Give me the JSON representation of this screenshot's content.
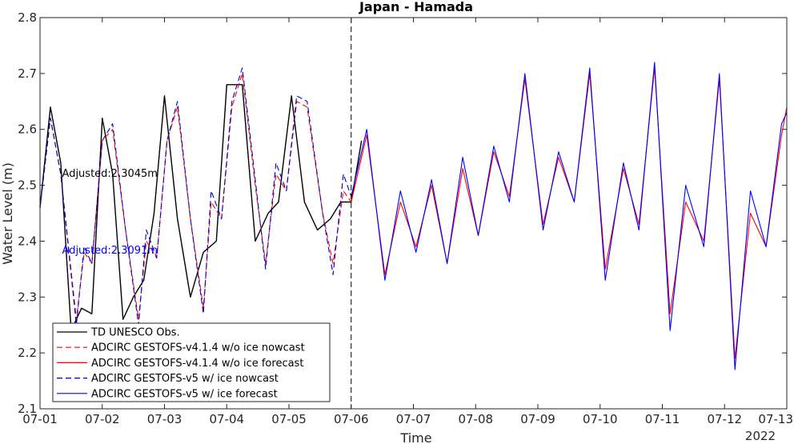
{
  "chart_data": {
    "type": "line",
    "title": "Japan - Hamada",
    "xlabel": "Time",
    "ylabel": "Water Level (m)",
    "year_label": "2022",
    "x_ticks": [
      "07-01",
      "07-02",
      "07-03",
      "07-04",
      "07-05",
      "07-06",
      "07-07",
      "07-08",
      "07-09",
      "07-10",
      "07-11",
      "07-12",
      "07-13"
    ],
    "xlim": [
      "2022-07-01",
      "2022-07-13"
    ],
    "ylim": [
      2.1,
      2.8
    ],
    "y_ticks": [
      2.1,
      2.2,
      2.3,
      2.4,
      2.5,
      2.6,
      2.7,
      2.8
    ],
    "nowcast_end": "2022-07-06",
    "annotations": [
      {
        "text": "Adjusted:2.3045m",
        "color": "#000000",
        "x": "2022-07-01 08:30",
        "y": 2.515
      },
      {
        "text": "Adjusted:2.3091m",
        "color": "#0000ff",
        "x": "2022-07-01 08:30",
        "y": 2.378
      }
    ],
    "legend_position": "bottom-left",
    "series": [
      {
        "name": "TD UNESCO Obs.",
        "color": "#000000",
        "dash": "solid",
        "x": [
          "2022-07-01 00:00",
          "2022-07-01 04:00",
          "2022-07-01 08:00",
          "2022-07-01 12:00",
          "2022-07-01 16:00",
          "2022-07-01 20:00",
          "2022-07-02 00:00",
          "2022-07-02 04:00",
          "2022-07-02 08:00",
          "2022-07-02 12:00",
          "2022-07-02 16:00",
          "2022-07-02 20:00",
          "2022-07-03 00:00",
          "2022-07-03 05:00",
          "2022-07-03 10:00",
          "2022-07-03 15:00",
          "2022-07-03 20:00",
          "2022-07-04 00:00",
          "2022-07-04 06:00",
          "2022-07-04 11:00",
          "2022-07-04 16:00",
          "2022-07-04 20:00",
          "2022-07-05 01:00",
          "2022-07-05 06:00",
          "2022-07-05 11:00",
          "2022-07-05 16:00",
          "2022-07-05 20:00",
          "2022-07-06 00:00",
          "2022-07-06 04:00"
        ],
        "y": [
          2.46,
          2.64,
          2.54,
          2.24,
          2.28,
          2.27,
          2.62,
          2.52,
          2.26,
          2.3,
          2.33,
          2.45,
          2.66,
          2.44,
          2.3,
          2.38,
          2.4,
          2.68,
          2.68,
          2.4,
          2.45,
          2.47,
          2.66,
          2.47,
          2.42,
          2.44,
          2.47,
          2.47,
          2.58
        ]
      },
      {
        "name": "ADCIRC GESTOFS-v4.1.4 w/o ice nowcast",
        "color": "#ff0000",
        "dash": "dashed",
        "x": [
          "2022-07-01 00:00",
          "2022-07-01 04:00",
          "2022-07-01 08:00",
          "2022-07-01 14:00",
          "2022-07-01 17:00",
          "2022-07-01 20:00",
          "2022-07-02 00:00",
          "2022-07-02 04:00",
          "2022-07-02 09:00",
          "2022-07-02 14:00",
          "2022-07-02 17:00",
          "2022-07-02 21:00",
          "2022-07-03 01:00",
          "2022-07-03 05:00",
          "2022-07-03 10:00",
          "2022-07-03 15:00",
          "2022-07-03 18:00",
          "2022-07-03 22:00",
          "2022-07-04 02:00",
          "2022-07-04 06:00",
          "2022-07-04 11:00",
          "2022-07-04 15:00",
          "2022-07-04 19:00",
          "2022-07-04 23:00",
          "2022-07-05 03:00",
          "2022-07-05 07:00",
          "2022-07-05 13:00",
          "2022-07-05 17:00",
          "2022-07-05 21:00",
          "2022-07-06 00:00"
        ],
        "y": [
          2.46,
          2.62,
          2.52,
          2.26,
          2.38,
          2.36,
          2.58,
          2.6,
          2.42,
          2.26,
          2.4,
          2.37,
          2.58,
          2.64,
          2.44,
          2.28,
          2.47,
          2.44,
          2.64,
          2.7,
          2.5,
          2.36,
          2.52,
          2.49,
          2.65,
          2.64,
          2.45,
          2.36,
          2.49,
          2.47
        ]
      },
      {
        "name": "ADCIRC GESTOFS-v4.1.4 w/o ice forecast",
        "color": "#ff0000",
        "dash": "solid",
        "x": [
          "2022-07-06 00:00",
          "2022-07-06 06:00",
          "2022-07-06 13:00",
          "2022-07-06 19:00",
          "2022-07-07 01:00",
          "2022-07-07 07:00",
          "2022-07-07 13:00",
          "2022-07-07 19:00",
          "2022-07-08 01:00",
          "2022-07-08 07:00",
          "2022-07-08 13:00",
          "2022-07-08 19:00",
          "2022-07-09 02:00",
          "2022-07-09 08:00",
          "2022-07-09 14:00",
          "2022-07-09 20:00",
          "2022-07-10 02:00",
          "2022-07-10 09:00",
          "2022-07-10 15:00",
          "2022-07-10 21:00",
          "2022-07-11 03:00",
          "2022-07-11 09:00",
          "2022-07-11 16:00",
          "2022-07-11 22:00",
          "2022-07-12 04:00",
          "2022-07-12 10:00",
          "2022-07-12 16:00",
          "2022-07-12 22:00",
          "2022-07-13 00:00"
        ],
        "y": [
          2.47,
          2.59,
          2.34,
          2.47,
          2.39,
          2.5,
          2.36,
          2.53,
          2.41,
          2.56,
          2.48,
          2.69,
          2.43,
          2.55,
          2.47,
          2.7,
          2.35,
          2.53,
          2.43,
          2.71,
          2.27,
          2.47,
          2.4,
          2.69,
          2.19,
          2.45,
          2.39,
          2.59,
          2.64
        ]
      },
      {
        "name": "ADCIRC GESTOFS-v5 w/ ice nowcast",
        "color": "#0000cc",
        "dash": "dashed",
        "x": [
          "2022-07-01 00:00",
          "2022-07-01 04:00",
          "2022-07-01 08:00",
          "2022-07-01 14:00",
          "2022-07-01 17:00",
          "2022-07-01 20:00",
          "2022-07-02 00:00",
          "2022-07-02 04:00",
          "2022-07-02 09:00",
          "2022-07-02 14:00",
          "2022-07-02 17:00",
          "2022-07-02 21:00",
          "2022-07-03 01:00",
          "2022-07-03 05:00",
          "2022-07-03 10:00",
          "2022-07-03 15:00",
          "2022-07-03 18:00",
          "2022-07-03 22:00",
          "2022-07-04 02:00",
          "2022-07-04 06:00",
          "2022-07-04 11:00",
          "2022-07-04 15:00",
          "2022-07-04 19:00",
          "2022-07-04 23:00",
          "2022-07-05 03:00",
          "2022-07-05 07:00",
          "2022-07-05 13:00",
          "2022-07-05 17:00",
          "2022-07-05 21:00",
          "2022-07-06 00:00"
        ],
        "y": [
          2.46,
          2.62,
          2.52,
          2.25,
          2.39,
          2.36,
          2.58,
          2.61,
          2.42,
          2.25,
          2.42,
          2.37,
          2.58,
          2.65,
          2.44,
          2.27,
          2.49,
          2.44,
          2.65,
          2.71,
          2.51,
          2.35,
          2.54,
          2.49,
          2.66,
          2.65,
          2.45,
          2.34,
          2.52,
          2.48
        ]
      },
      {
        "name": "ADCIRC GESTOFS-v5 w/ ice forecast",
        "color": "#0000ff",
        "dash": "solid",
        "x": [
          "2022-07-06 00:00",
          "2022-07-06 06:00",
          "2022-07-06 13:00",
          "2022-07-06 19:00",
          "2022-07-07 01:00",
          "2022-07-07 07:00",
          "2022-07-07 13:00",
          "2022-07-07 19:00",
          "2022-07-08 01:00",
          "2022-07-08 07:00",
          "2022-07-08 13:00",
          "2022-07-08 19:00",
          "2022-07-09 02:00",
          "2022-07-09 08:00",
          "2022-07-09 14:00",
          "2022-07-09 20:00",
          "2022-07-10 02:00",
          "2022-07-10 09:00",
          "2022-07-10 15:00",
          "2022-07-10 21:00",
          "2022-07-11 03:00",
          "2022-07-11 09:00",
          "2022-07-11 16:00",
          "2022-07-11 22:00",
          "2022-07-12 04:00",
          "2022-07-12 10:00",
          "2022-07-12 16:00",
          "2022-07-12 22:00",
          "2022-07-13 00:00"
        ],
        "y": [
          2.48,
          2.6,
          2.33,
          2.49,
          2.38,
          2.51,
          2.36,
          2.55,
          2.41,
          2.57,
          2.47,
          2.7,
          2.42,
          2.56,
          2.47,
          2.71,
          2.33,
          2.54,
          2.42,
          2.72,
          2.24,
          2.5,
          2.39,
          2.7,
          2.17,
          2.49,
          2.39,
          2.61,
          2.63
        ]
      }
    ]
  }
}
